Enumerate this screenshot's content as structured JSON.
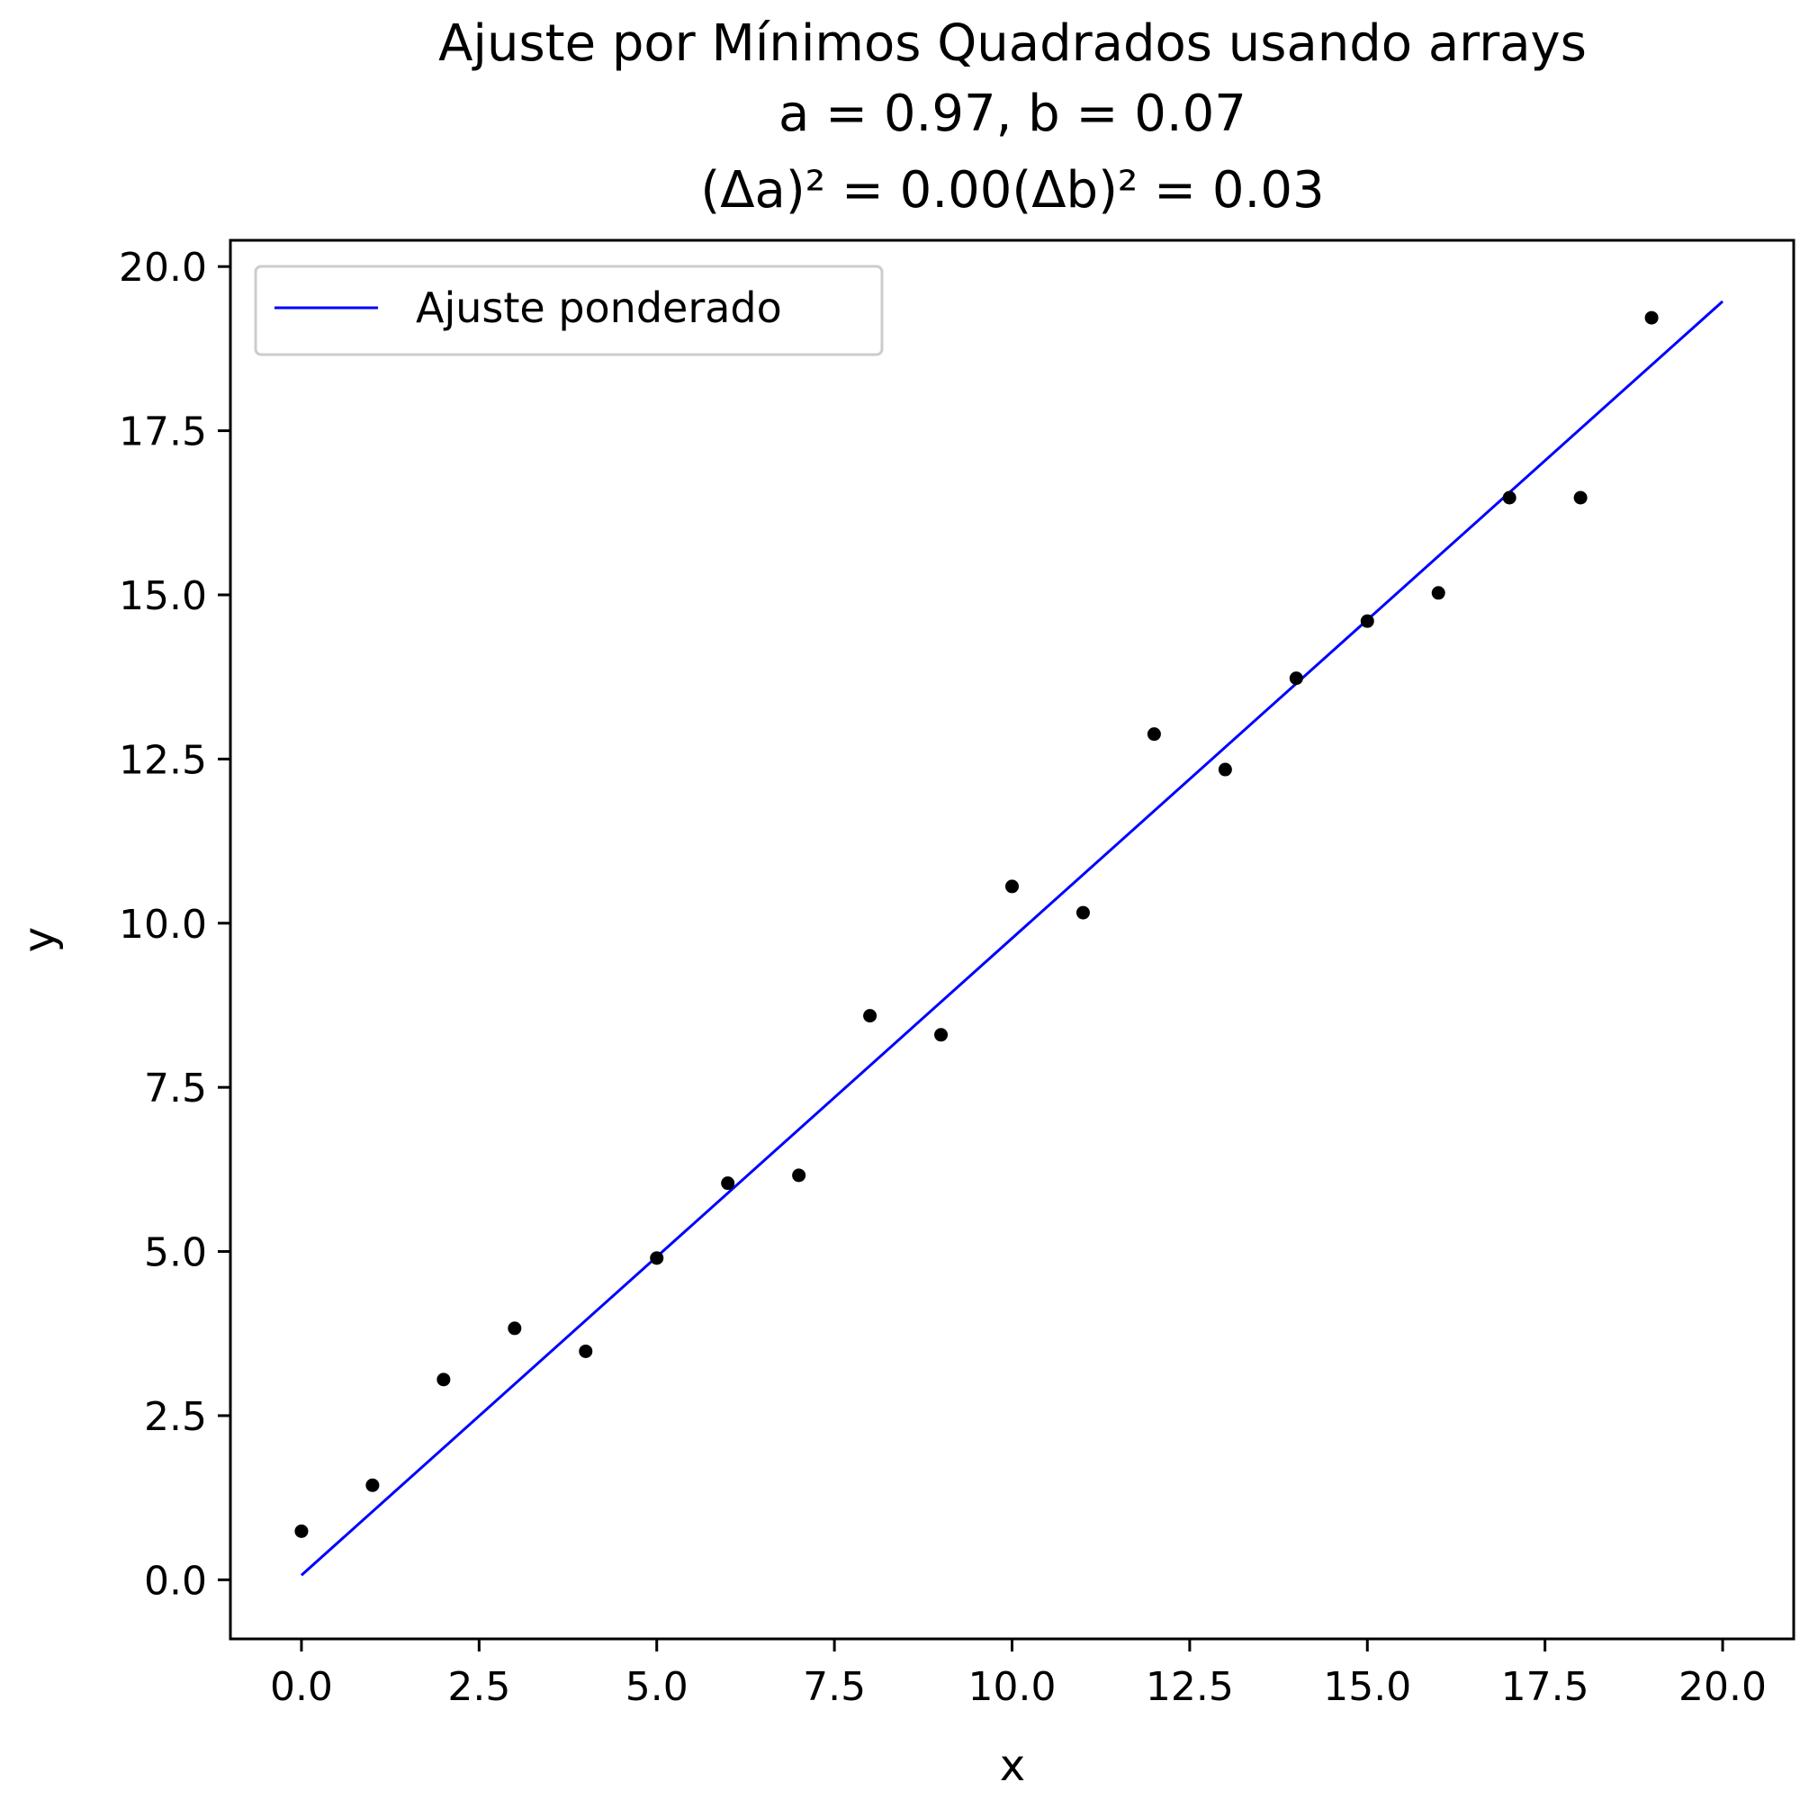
{
  "chart_data": {
    "type": "scatter",
    "title_lines": [
      "Ajuste por Mínimos Quadrados usando arrays",
      "a = 0.97, b = 0.07",
      "(Δa)² = 0.00(Δb)² = 0.03"
    ],
    "xlabel": "x",
    "ylabel": "y",
    "xlim": [
      -1.0,
      21.0
    ],
    "ylim": [
      -0.9,
      20.4
    ],
    "xticks": [
      0.0,
      2.5,
      5.0,
      7.5,
      10.0,
      12.5,
      15.0,
      17.5,
      20.0
    ],
    "yticks": [
      0.0,
      2.5,
      5.0,
      7.5,
      10.0,
      12.5,
      15.0,
      17.5,
      20.0
    ],
    "xtick_labels": [
      "0.0",
      "2.5",
      "5.0",
      "7.5",
      "10.0",
      "12.5",
      "15.0",
      "17.5",
      "20.0"
    ],
    "ytick_labels": [
      "0.0",
      "2.5",
      "5.0",
      "7.5",
      "10.0",
      "12.5",
      "15.0",
      "17.5",
      "20.0"
    ],
    "grid": false,
    "legend_position": "top-left",
    "points": {
      "x": [
        0,
        1,
        2,
        3,
        4,
        5,
        6,
        7,
        8,
        9,
        10,
        11,
        12,
        13,
        14,
        15,
        16,
        17,
        18,
        19
      ],
      "y": [
        0.74,
        1.44,
        3.05,
        3.83,
        3.48,
        4.9,
        6.04,
        6.16,
        8.59,
        8.3,
        10.56,
        10.16,
        12.88,
        12.34,
        13.73,
        14.6,
        15.03,
        16.48,
        16.48,
        19.22
      ],
      "color": "#000000"
    },
    "series": [
      {
        "name": "Ajuste ponderado",
        "type": "line",
        "x": [
          0,
          20
        ],
        "y": [
          0.07,
          19.47
        ],
        "color": "#0000ff"
      }
    ]
  }
}
